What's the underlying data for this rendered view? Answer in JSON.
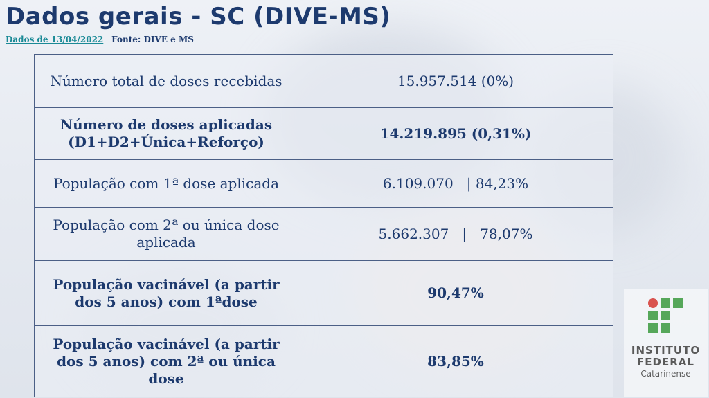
{
  "header": {
    "title": "Dados gerais - SC  (DIVE-MS)",
    "date_link": "Dados de 13/04/2022",
    "source": "Fonte: DIVE  e  MS"
  },
  "table": {
    "rows": [
      {
        "label": "Número total de doses recebidas",
        "value": "15.957.514 (0%)"
      },
      {
        "label": "Número de doses aplicadas (D1+D2+Única+Reforço)",
        "value": "14.219.895  (0,31%)"
      },
      {
        "label": "População com 1ª dose aplicada",
        "value": "6.109.070   | 84,23%"
      },
      {
        "label": "População com 2ª ou única dose aplicada",
        "value": "5.662.307   |   78,07%"
      },
      {
        "label": "População vacinável (a partir dos 5 anos)  com 1ªdose",
        "value": "90,47%"
      },
      {
        "label": "População vacinável (a partir dos 5 anos)  com  2ª ou única dose",
        "value": "83,85%"
      }
    ]
  },
  "logo": {
    "line1": "INSTITUTO",
    "line2": "FEDERAL",
    "line3": "Catarinense",
    "colors": {
      "dot": "#d9534f",
      "squares": "#56a75a",
      "text": "#5a5a5a"
    }
  }
}
